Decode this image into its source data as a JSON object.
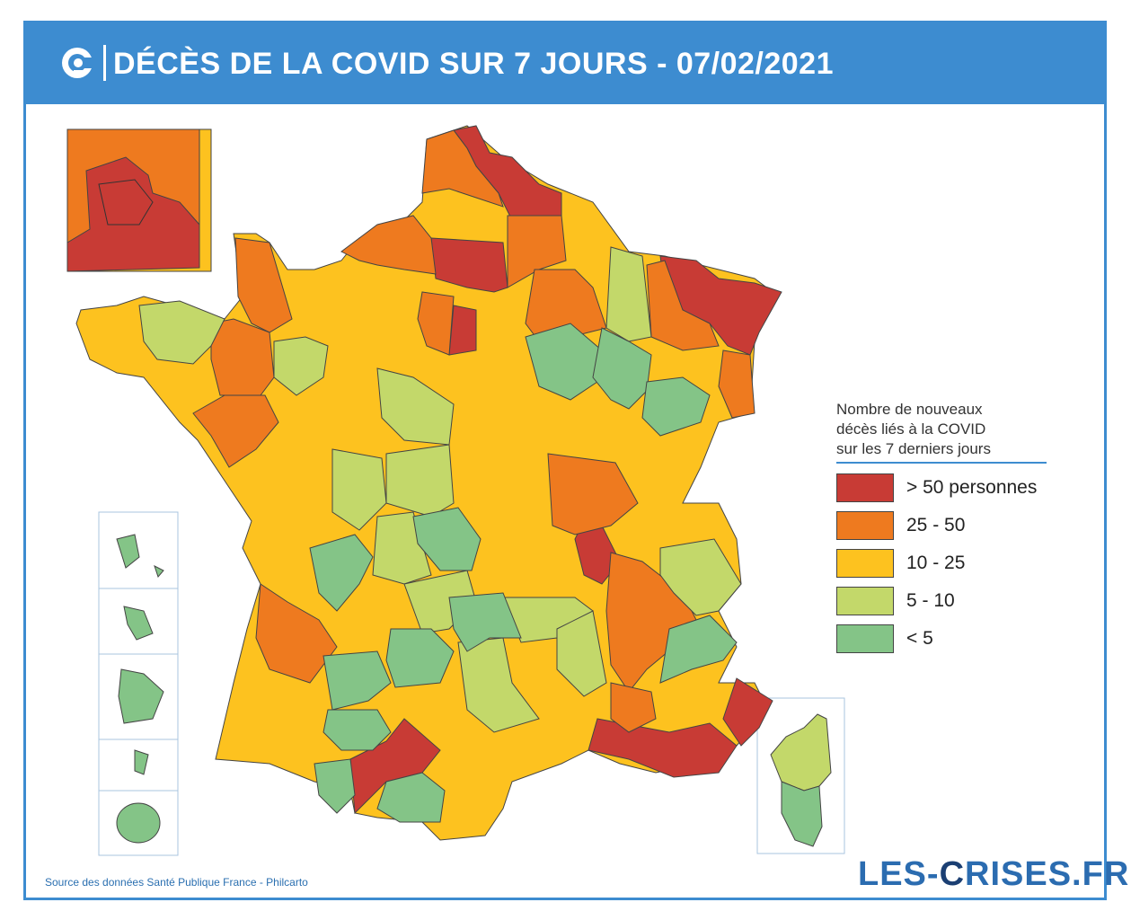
{
  "header": {
    "title": "DÉCÈS DE LA COVID SUR 7 JOURS - 07/02/2021",
    "logo_icon": "les-crises-c-logo-icon"
  },
  "colors": {
    "header_blue": "#3d8cd0",
    "gt50": "#c83b35",
    "c25_50": "#ee7a1f",
    "c10_25": "#fdc21f",
    "c5_10": "#c3d86a",
    "lt5": "#84c487"
  },
  "legend": {
    "title_lines": [
      "Nombre de nouveaux",
      "décès liés à la COVID",
      "sur les 7 derniers jours"
    ],
    "items": [
      {
        "label": "> 50 personnes",
        "color": "#c83b35"
      },
      {
        "label": "25 - 50",
        "color": "#ee7a1f"
      },
      {
        "label": "10 - 25",
        "color": "#fdc21f"
      },
      {
        "label": "5 - 10",
        "color": "#c3d86a"
      },
      {
        "label": "< 5",
        "color": "#84c487"
      }
    ]
  },
  "source": "Source des données Santé Publique France - Philcarto",
  "brand": {
    "prefix": "LES-",
    "c": "C",
    "suffix": "RISES.FR"
  }
}
